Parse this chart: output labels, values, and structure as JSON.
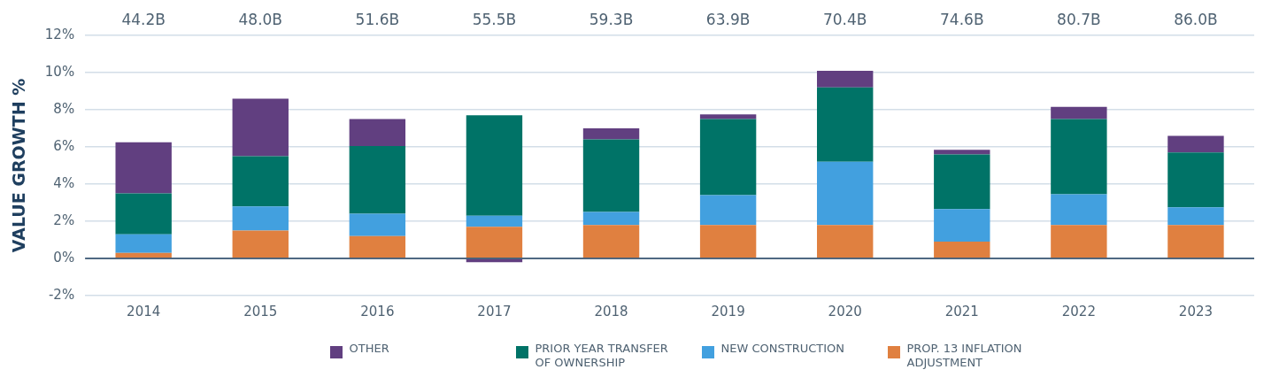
{
  "chart_data": {
    "type": "bar",
    "stacked": true,
    "ylabel": "VALUE GROWTH %",
    "categories": [
      "2014",
      "2015",
      "2016",
      "2017",
      "2018",
      "2019",
      "2020",
      "2021",
      "2022",
      "2023"
    ],
    "series": [
      {
        "name": "PROP. 13 INFLATION ADJUSTMENT",
        "color": "#e08040",
        "values": [
          0.3,
          1.5,
          1.2,
          1.7,
          1.8,
          1.8,
          1.8,
          0.9,
          1.8,
          1.8
        ]
      },
      {
        "name": "NEW CONSTRUCTION",
        "color": "#42a0df",
        "values": [
          1.0,
          1.3,
          1.2,
          0.6,
          0.7,
          1.6,
          3.4,
          1.75,
          1.65,
          0.95
        ]
      },
      {
        "name": "PRIOR YEAR TRANSFER OF OWNERSHIP",
        "color": "#007367",
        "values": [
          2.2,
          2.7,
          3.65,
          5.4,
          3.9,
          4.1,
          4.0,
          2.95,
          4.05,
          2.95
        ]
      },
      {
        "name": "OTHER",
        "color": "#613f80",
        "values": [
          2.75,
          3.1,
          1.45,
          -0.2,
          0.6,
          0.25,
          0.9,
          0.25,
          0.65,
          0.9
        ]
      }
    ],
    "ylim": [
      -2,
      12
    ],
    "yticks": [
      {
        "value": -2,
        "label": "-2%"
      },
      {
        "value": 0,
        "label": "0%"
      },
      {
        "value": 2,
        "label": "2%"
      },
      {
        "value": 4,
        "label": "4%"
      },
      {
        "value": 6,
        "label": "6%"
      },
      {
        "value": 8,
        "label": "8%"
      },
      {
        "value": 10,
        "label": "10%"
      },
      {
        "value": 12,
        "label": "12%"
      }
    ],
    "grid": "y",
    "legend": "bottom",
    "annotations": [
      "44.2B",
      "48.0B",
      "51.6B",
      "55.5B",
      "59.3B",
      "63.9B",
      "70.4B",
      "74.6B",
      "80.7B",
      "86.0B"
    ]
  }
}
